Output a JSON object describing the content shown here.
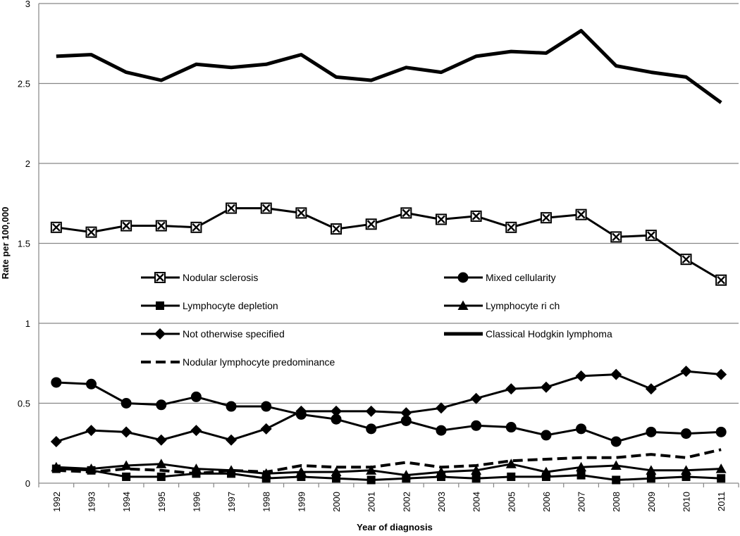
{
  "chart_data": {
    "type": "line",
    "title": "",
    "xlabel": "Year of diagnosis",
    "ylabel": "Rate per 100,000",
    "ylim": [
      0,
      3
    ],
    "yticks": [
      "0",
      "0.5",
      "1",
      "1.5",
      "2",
      "2.5",
      "3"
    ],
    "grid": true,
    "legend_position": "center-left",
    "x": [
      "1992",
      "1993",
      "1994",
      "1995",
      "1996",
      "1997",
      "1998",
      "1999",
      "2000",
      "2001",
      "2002",
      "2003",
      "2004",
      "2005",
      "2006",
      "2007",
      "2008",
      "2009",
      "2010",
      "2011"
    ],
    "series": [
      {
        "name": "Nodular sclerosis",
        "marker": "boxed-x",
        "line": "solid",
        "values": [
          1.6,
          1.57,
          1.61,
          1.61,
          1.6,
          1.72,
          1.72,
          1.69,
          1.59,
          1.62,
          1.69,
          1.65,
          1.67,
          1.6,
          1.66,
          1.68,
          1.54,
          1.55,
          1.4,
          1.27
        ]
      },
      {
        "name": "Mixed cellularity",
        "marker": "circle",
        "line": "solid",
        "values": [
          0.63,
          0.62,
          0.5,
          0.49,
          0.54,
          0.48,
          0.48,
          0.43,
          0.4,
          0.34,
          0.39,
          0.33,
          0.36,
          0.35,
          0.3,
          0.34,
          0.26,
          0.32,
          0.31,
          0.32
        ]
      },
      {
        "name": "Lymphocyte depletion",
        "marker": "square",
        "line": "solid",
        "values": [
          0.09,
          0.08,
          0.04,
          0.04,
          0.06,
          0.06,
          0.03,
          0.04,
          0.03,
          0.02,
          0.03,
          0.04,
          0.03,
          0.04,
          0.04,
          0.05,
          0.02,
          0.03,
          0.04,
          0.03
        ]
      },
      {
        "name": "Lymphocyte rich",
        "legend_label": "Lymphocyte ri ch",
        "marker": "triangle",
        "line": "solid",
        "values": [
          0.1,
          0.09,
          0.11,
          0.12,
          0.09,
          0.08,
          0.06,
          0.07,
          0.07,
          0.08,
          0.05,
          0.07,
          0.08,
          0.12,
          0.07,
          0.1,
          0.11,
          0.08,
          0.08,
          0.09
        ]
      },
      {
        "name": "Not otherwise specified",
        "marker": "diamond",
        "line": "solid",
        "values": [
          0.26,
          0.33,
          0.32,
          0.27,
          0.33,
          0.27,
          0.34,
          0.45,
          0.45,
          0.45,
          0.44,
          0.47,
          0.53,
          0.59,
          0.6,
          0.67,
          0.68,
          0.59,
          0.7,
          0.68
        ]
      },
      {
        "name": "Classical Hodgkin lymphoma",
        "marker": "none",
        "line": "thick",
        "values": [
          2.67,
          2.68,
          2.57,
          2.52,
          2.62,
          2.6,
          2.62,
          2.68,
          2.54,
          2.52,
          2.6,
          2.57,
          2.67,
          2.7,
          2.69,
          2.83,
          2.61,
          2.57,
          2.54,
          2.38
        ]
      },
      {
        "name": "Nodular lymphocyte predominance",
        "marker": "none",
        "line": "dashed",
        "values": [
          0.08,
          0.07,
          0.09,
          0.08,
          0.06,
          0.08,
          0.07,
          0.11,
          0.1,
          0.1,
          0.13,
          0.1,
          0.11,
          0.14,
          0.15,
          0.16,
          0.16,
          0.18,
          0.16,
          0.21
        ]
      }
    ]
  }
}
